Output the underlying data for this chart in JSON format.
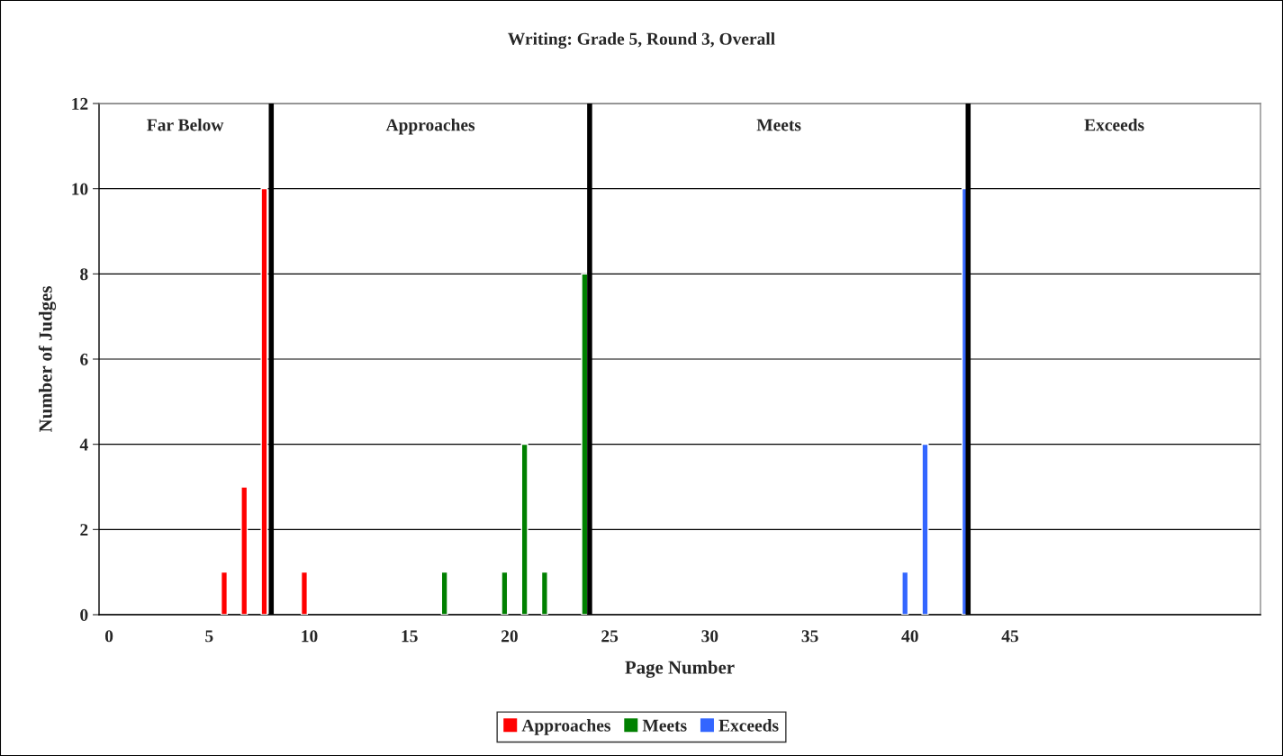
{
  "chart_data": {
    "type": "bar",
    "title": "Writing: Grade 5, Round 3, Overall",
    "xlabel": "Page Number",
    "ylabel": "Number of Judges",
    "series": [
      {
        "name": "Approaches",
        "color": "#ff0000",
        "x": [
          6,
          7,
          8,
          10
        ],
        "values": [
          1,
          3,
          10,
          1
        ]
      },
      {
        "name": "Meets",
        "color": "#008000",
        "x": [
          17,
          20,
          21,
          22,
          24
        ],
        "values": [
          1,
          1,
          4,
          1,
          8
        ]
      },
      {
        "name": "Exceeds",
        "color": "#3366ff",
        "x": [
          40,
          41,
          43
        ],
        "values": [
          1,
          4,
          10
        ]
      }
    ],
    "xlim": [
      -0.5,
      57.5
    ],
    "xticks": [
      0,
      5,
      10,
      15,
      20,
      25,
      30,
      35,
      40,
      45
    ],
    "ylim": [
      0,
      12
    ],
    "yticks": [
      0,
      2,
      4,
      6,
      8,
      10,
      12
    ],
    "ref_lines": [
      {
        "axis": "x",
        "value": 8.1,
        "color": "#000000"
      },
      {
        "axis": "x",
        "value": 24.0,
        "color": "#000000"
      },
      {
        "axis": "x",
        "value": 42.9,
        "color": "#000000"
      }
    ],
    "annotations": [
      "Far Below",
      "Approaches",
      "Meets",
      "Exceeds"
    ],
    "grid": "y",
    "legend": "bottom"
  }
}
